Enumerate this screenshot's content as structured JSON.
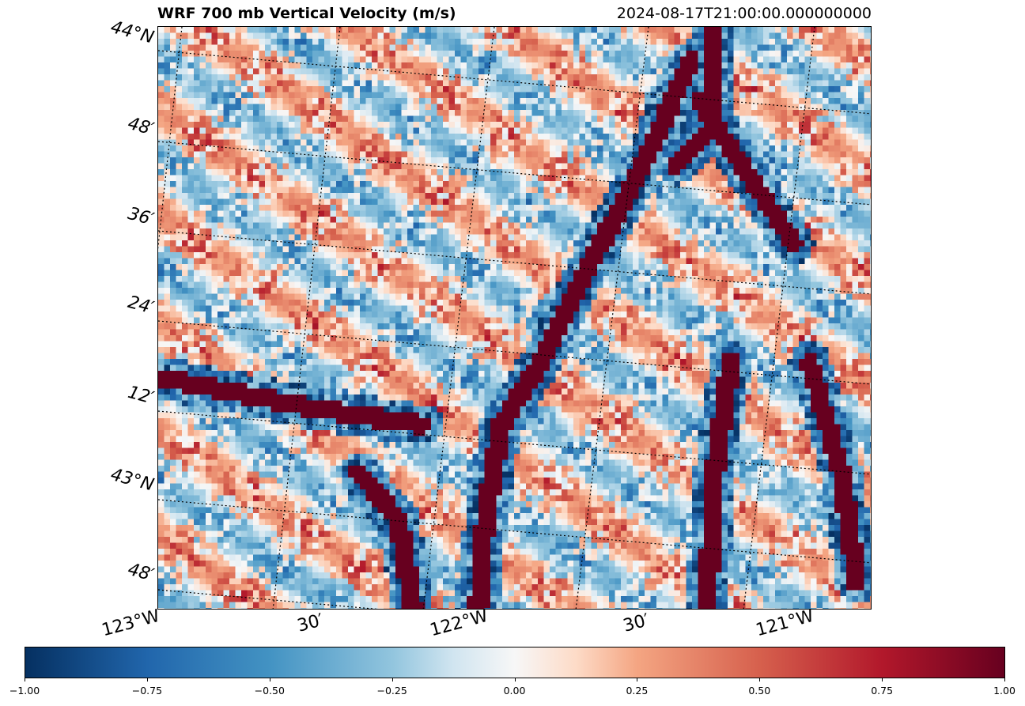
{
  "map": {
    "title": "WRF 700 mb Vertical Velocity (m/s)",
    "valid_time": "2024-08-17T21:00:00.000000000",
    "variable": "Vertical Velocity",
    "level": "700 mb",
    "units": "m/s",
    "lat_labels": [
      "44°N",
      "48′",
      "36′",
      "24′",
      "12′",
      "43°N",
      "48′"
    ],
    "lon_labels": [
      "123°W",
      "30′",
      "122°W",
      "30′",
      "121°W"
    ],
    "colormap": "RdBu_r",
    "colors": {
      "neg_max": "#053061",
      "neg_mid": "#2166ac",
      "neg_low": "#92c5de",
      "zero": "#f7f7f7",
      "pos_low": "#f4a582",
      "pos_mid": "#b2182b",
      "pos_max": "#67001f"
    }
  },
  "colorbar": {
    "min": -1.0,
    "max": 1.0,
    "ticks": [
      "−1.00",
      "−0.75",
      "−0.50",
      "−0.25",
      "0.00",
      "0.25",
      "0.50",
      "0.75",
      "1.00"
    ]
  }
}
